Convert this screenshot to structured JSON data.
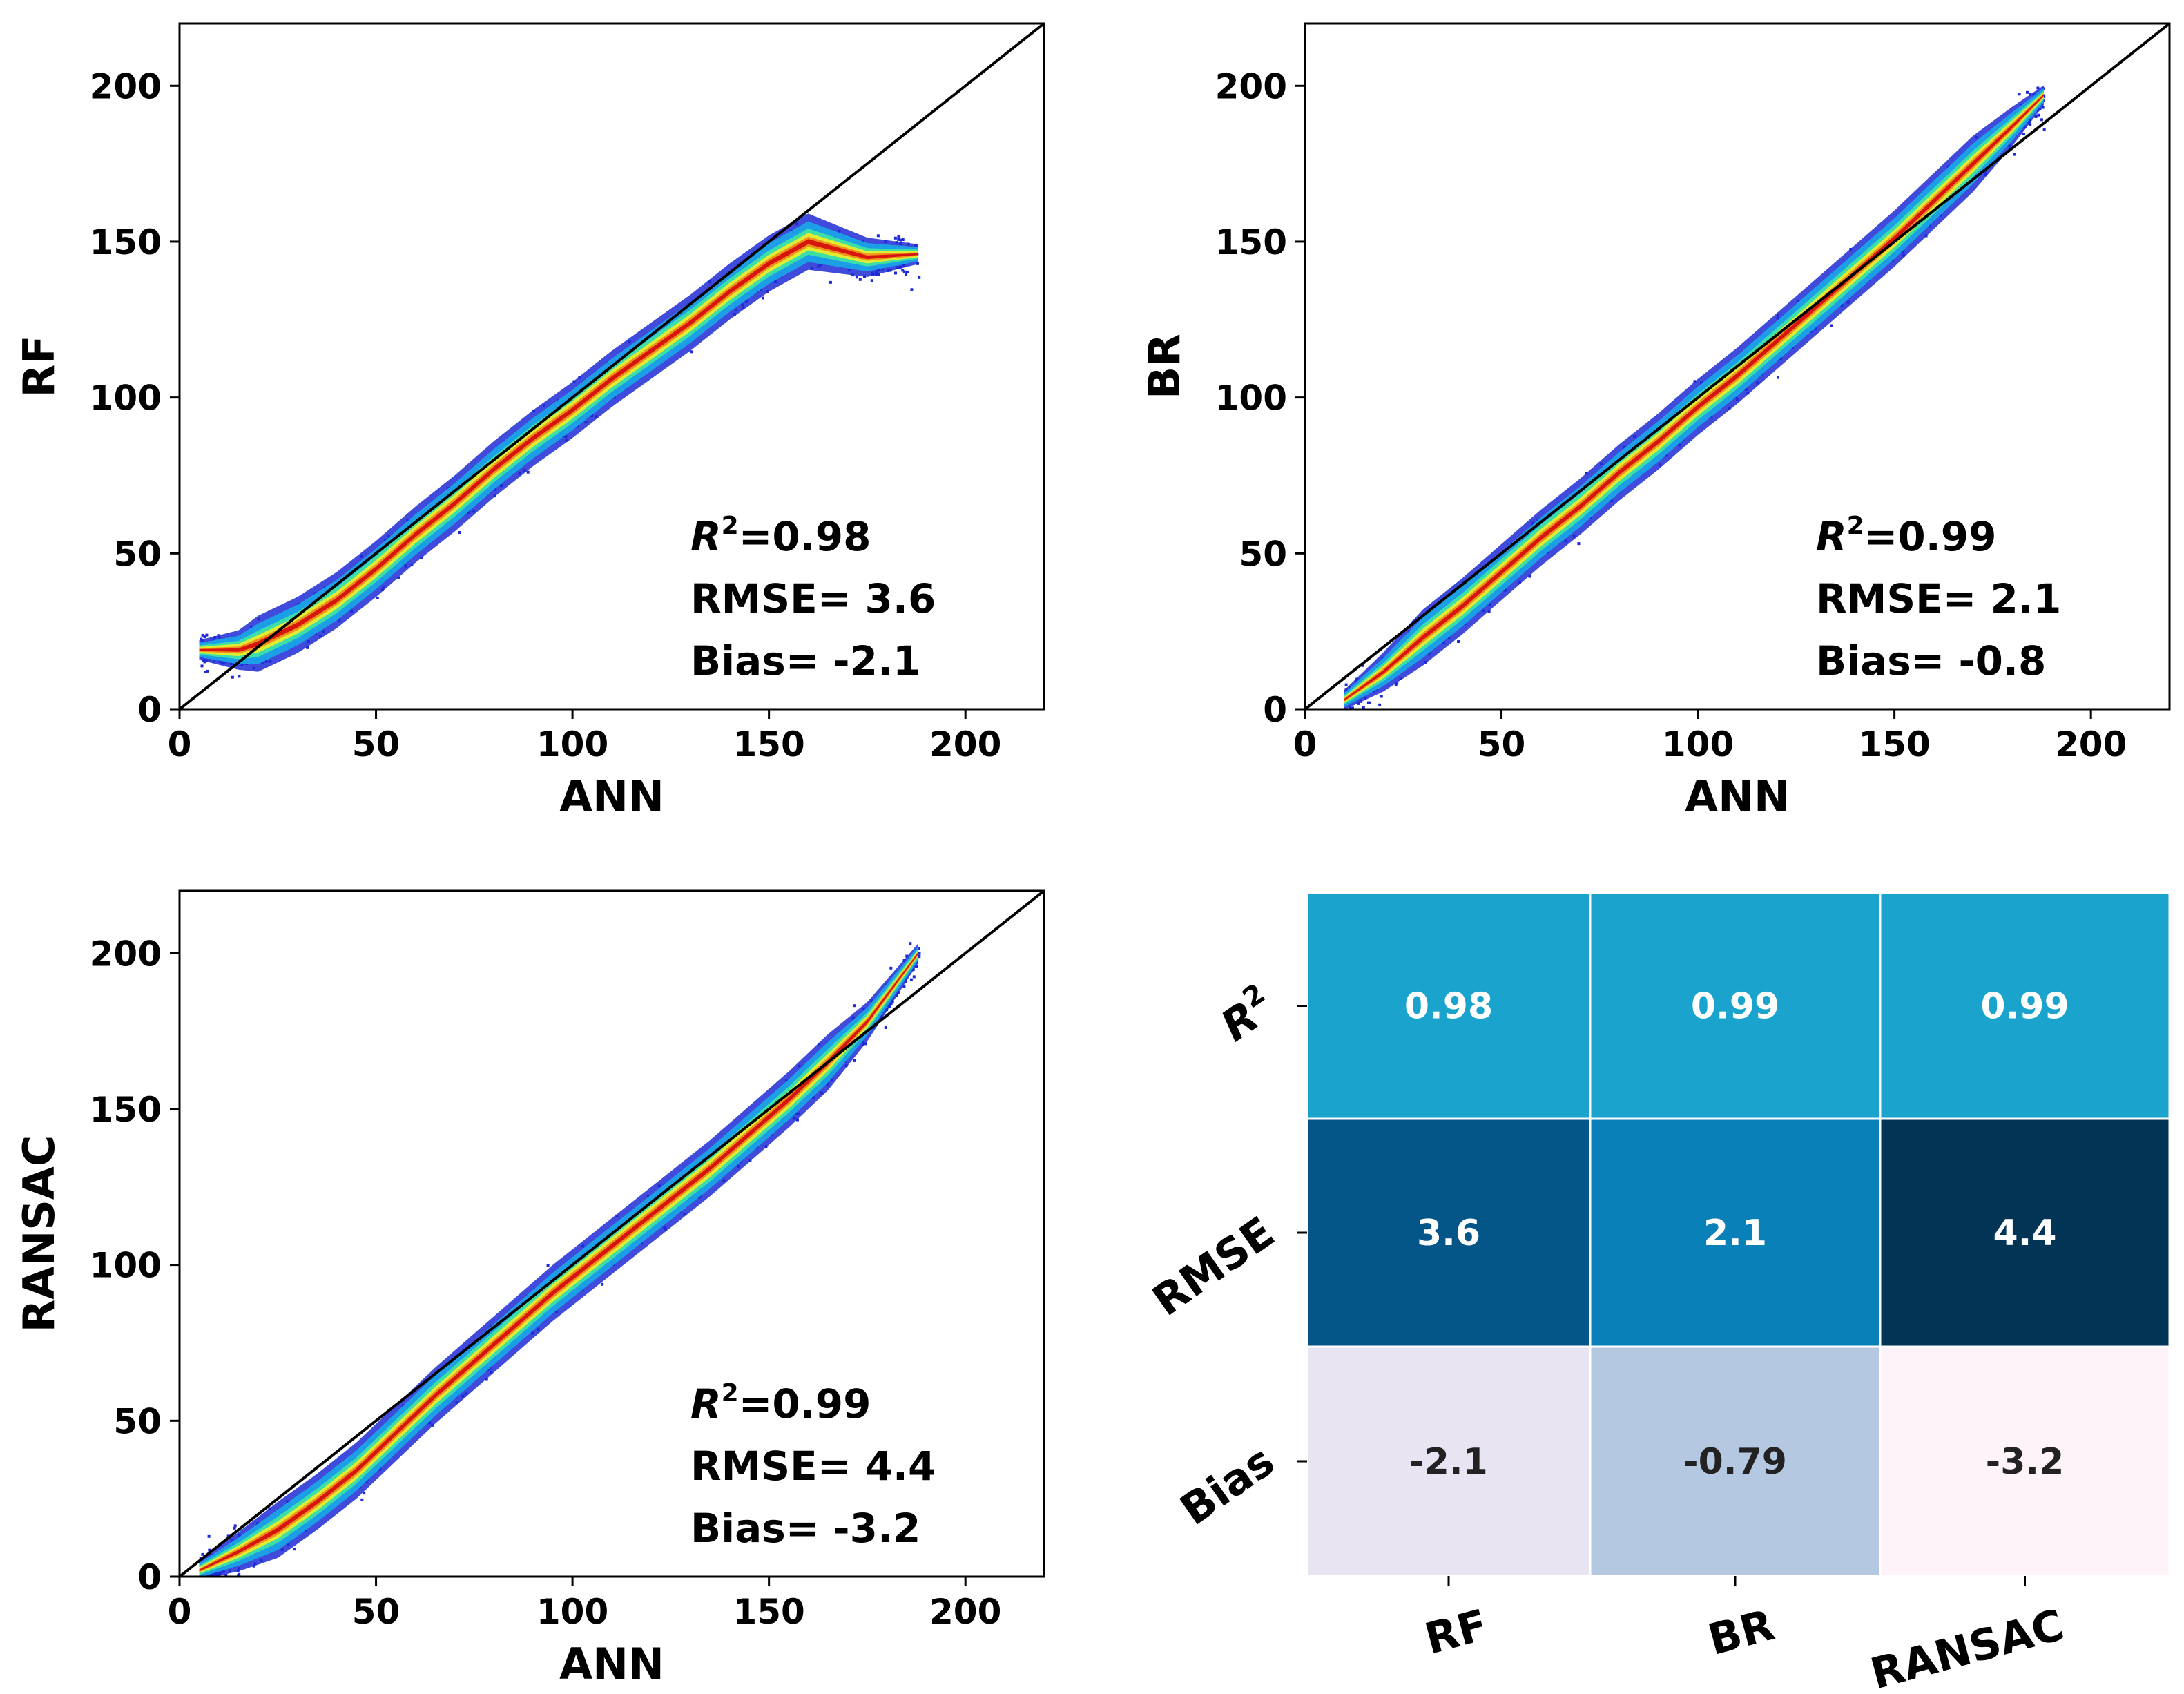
{
  "chart_data": [
    {
      "type": "scatter",
      "xlabel": "ANN",
      "ylabel": "RF",
      "xlim": [
        0,
        220
      ],
      "ylim": [
        0,
        220
      ],
      "xticks": [
        "0",
        "50",
        "100",
        "150",
        "200"
      ],
      "yticks": [
        "0",
        "50",
        "100",
        "150",
        "200"
      ],
      "reference_line": "y = x",
      "stats": {
        "r2_label": "R",
        "r2": "=0.98",
        "rmse": "RMSE= 3.6",
        "bias": "Bias= -2.1"
      },
      "series": [
        {
          "x": [
            5,
            15,
            20,
            30,
            40,
            50,
            60,
            70,
            80,
            90,
            100,
            110,
            120,
            130,
            140,
            150,
            160,
            175,
            188
          ],
          "values": [
            19,
            19,
            21,
            27,
            35,
            45,
            56,
            66,
            77,
            87,
            96,
            106,
            115,
            124,
            134,
            143,
            150,
            145,
            146
          ]
        }
      ]
    },
    {
      "type": "scatter",
      "xlabel": "ANN",
      "ylabel": "BR",
      "xlim": [
        0,
        220
      ],
      "ylim": [
        0,
        220
      ],
      "xticks": [
        "0",
        "50",
        "100",
        "150",
        "200"
      ],
      "yticks": [
        "0",
        "50",
        "100",
        "150",
        "200"
      ],
      "reference_line": "y = x",
      "stats": {
        "r2_label": "R",
        "r2": "=0.99",
        "rmse": "RMSE= 2.1",
        "bias": "Bias= -0.8"
      },
      "series": [
        {
          "x": [
            10,
            20,
            30,
            40,
            50,
            60,
            70,
            80,
            90,
            100,
            110,
            120,
            130,
            140,
            150,
            160,
            170,
            180,
            188
          ],
          "values": [
            3,
            12,
            23,
            33,
            44,
            55,
            65,
            76,
            86,
            97,
            107,
            118,
            129,
            140,
            151,
            163,
            175,
            187,
            197
          ]
        }
      ]
    },
    {
      "type": "scatter",
      "xlabel": "ANN",
      "ylabel": "RANSAC",
      "xlim": [
        0,
        220
      ],
      "ylim": [
        0,
        220
      ],
      "xticks": [
        "0",
        "50",
        "100",
        "150",
        "200"
      ],
      "yticks": [
        "0",
        "50",
        "100",
        "150",
        "200"
      ],
      "reference_line": "y = x",
      "stats": {
        "r2_label": "R",
        "r2": "=0.99",
        "rmse": "RMSE= 4.4",
        "bias": "Bias= -3.2"
      },
      "series": [
        {
          "x": [
            5,
            15,
            25,
            35,
            45,
            55,
            65,
            75,
            85,
            95,
            105,
            115,
            125,
            135,
            145,
            155,
            165,
            175,
            188
          ],
          "values": [
            2,
            8,
            15,
            24,
            34,
            46,
            58,
            69,
            80,
            91,
            101,
            111,
            121,
            131,
            142,
            153,
            165,
            178,
            200
          ]
        }
      ]
    },
    {
      "type": "heatmap",
      "rows": [
        "R",
        "RMSE",
        "Bias"
      ],
      "columns": [
        "RF",
        "BR",
        "RANSAC"
      ],
      "values": [
        [
          "0.98",
          "0.99",
          "0.99"
        ],
        [
          "3.6",
          "2.1",
          "4.4"
        ],
        [
          "-2.1",
          "-0.79",
          "-3.2"
        ]
      ],
      "colors": [
        [
          "#1aa3cc",
          "#1aa3cc",
          "#1aa3cc"
        ],
        [
          "#055688",
          "#0a80b8",
          "#023455"
        ],
        [
          "#e8e4f2",
          "#b4c8e2",
          "#fdf3f9"
        ]
      ],
      "text_colors": [
        [
          "#ffffff",
          "#ffffff",
          "#ffffff"
        ],
        [
          "#ffffff",
          "#ffffff",
          "#ffffff"
        ],
        [
          "#222222",
          "#222222",
          "#222222"
        ]
      ]
    }
  ]
}
